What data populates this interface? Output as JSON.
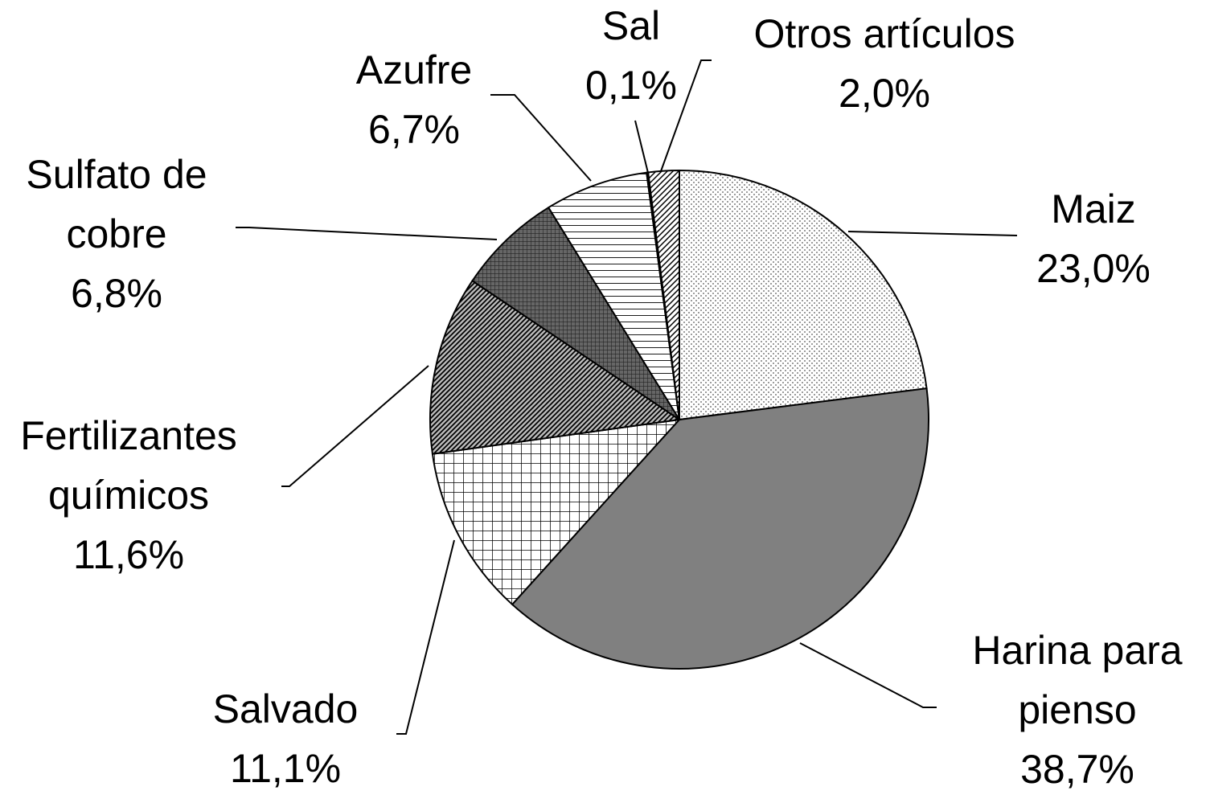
{
  "chart_data": {
    "type": "pie",
    "categories": [
      "Maiz",
      "Harina para pienso",
      "Salvado",
      "Fertilizantes químicos",
      "Sulfato de cobre",
      "Azufre",
      "Sal",
      "Otros artículos"
    ],
    "values": [
      23.0,
      38.7,
      11.1,
      11.6,
      6.8,
      6.7,
      0.1,
      2.0
    ],
    "value_labels": [
      "23,0%",
      "38,7%",
      "11,1%",
      "11,6%",
      "6,8%",
      "6,7%",
      "0,1%",
      "2,0%"
    ],
    "colors": [
      "url(#pdots)",
      "#808080",
      "url(#pgrid)",
      "url(#pdiag)",
      "url(#pcross)",
      "url(#phoriz)",
      "url(#pdiag2)",
      "url(#pdiag2)"
    ]
  }
}
